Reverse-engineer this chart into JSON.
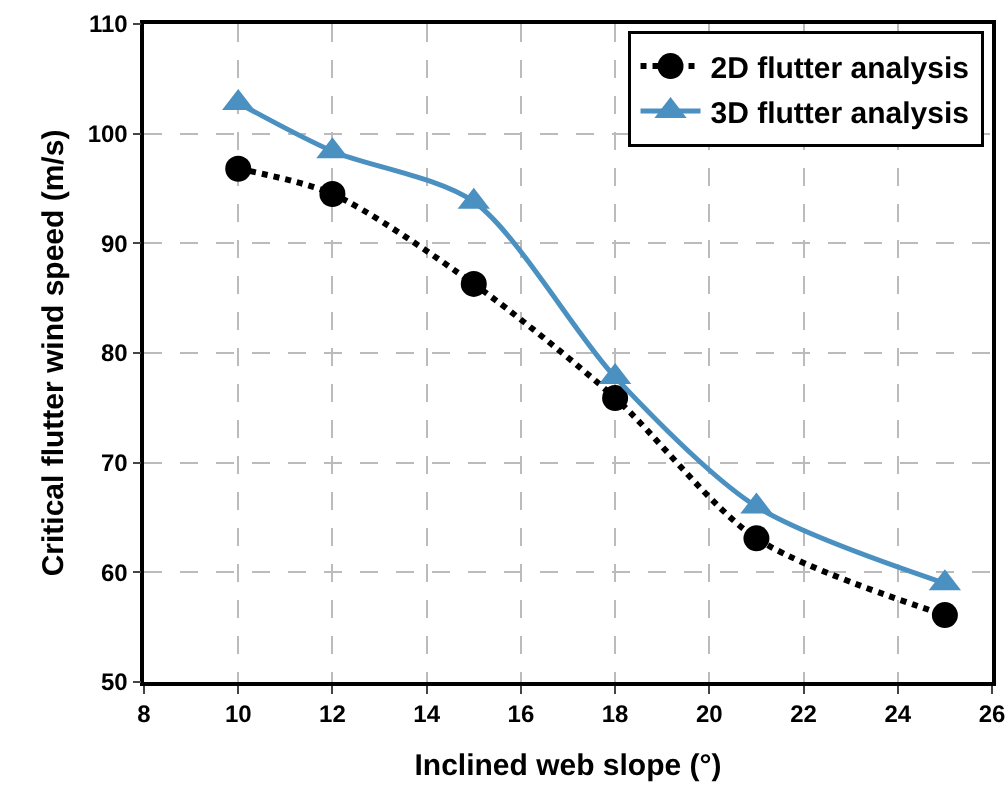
{
  "chart_data": {
    "type": "line",
    "xlabel": "Inclined web slope (°)",
    "ylabel": "Critical flutter wind speed (m/s)",
    "x": [
      10,
      12,
      15,
      18,
      21,
      25
    ],
    "series": [
      {
        "name": "2D flutter analysis",
        "color": "#000000",
        "values": [
          96.8,
          94.5,
          86.3,
          75.9,
          63.1,
          56.1
        ],
        "marker": "circle",
        "line_style": "dotted"
      },
      {
        "name": "3D flutter analysis",
        "color": "#4a90c0",
        "values": [
          102.8,
          98.4,
          93.8,
          77.8,
          66,
          59
        ],
        "marker": "triangle",
        "line_style": "solid"
      }
    ],
    "xlim": [
      8,
      26
    ],
    "xticks": [
      8,
      10,
      12,
      14,
      16,
      18,
      20,
      22,
      24,
      26
    ],
    "ylim": [
      50,
      110
    ],
    "yticks": [
      50,
      60,
      70,
      80,
      90,
      100,
      110
    ],
    "grid": true,
    "legend": "top right"
  }
}
